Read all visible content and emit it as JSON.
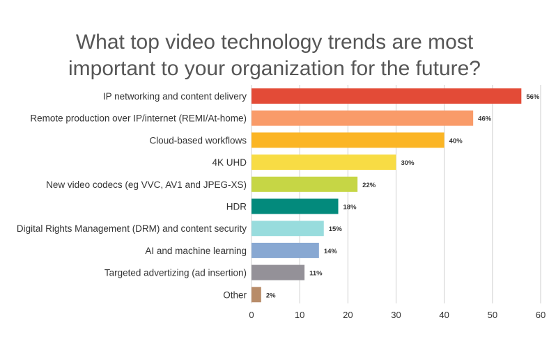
{
  "chart_data": {
    "type": "bar",
    "orientation": "horizontal",
    "title_lines": [
      "What top video technology trends are most",
      "important to your organization for the future?"
    ],
    "categories": [
      "IP networking and content delivery",
      "Remote production over IP/internet (REMI/At-home)",
      "Cloud-based workflows",
      "4K UHD",
      "New video codecs (eg VVC, AV1 and JPEG-XS)",
      "HDR",
      "Digital Rights Management (DRM) and content security",
      "AI and machine learning",
      "Targeted advertizing (ad insertion)",
      "Other"
    ],
    "values": [
      56,
      46,
      40,
      30,
      22,
      18,
      15,
      14,
      11,
      2
    ],
    "data_labels": [
      "56%",
      "46%",
      "40%",
      "30%",
      "22%",
      "18%",
      "15%",
      "14%",
      "11%",
      "2%"
    ],
    "colors": [
      "#e34b37",
      "#f99b69",
      "#fbb525",
      "#f8dc44",
      "#c6d645",
      "#038a7c",
      "#98dcdd",
      "#88a8d2",
      "#949198",
      "#b88c69"
    ],
    "xlim": [
      0,
      60
    ],
    "xticks": [
      0,
      10,
      20,
      30,
      40,
      50,
      60
    ],
    "xlabel": "",
    "ylabel": "",
    "grid": "vertical",
    "grid_color": "#cfcfcf",
    "legend": "none"
  }
}
